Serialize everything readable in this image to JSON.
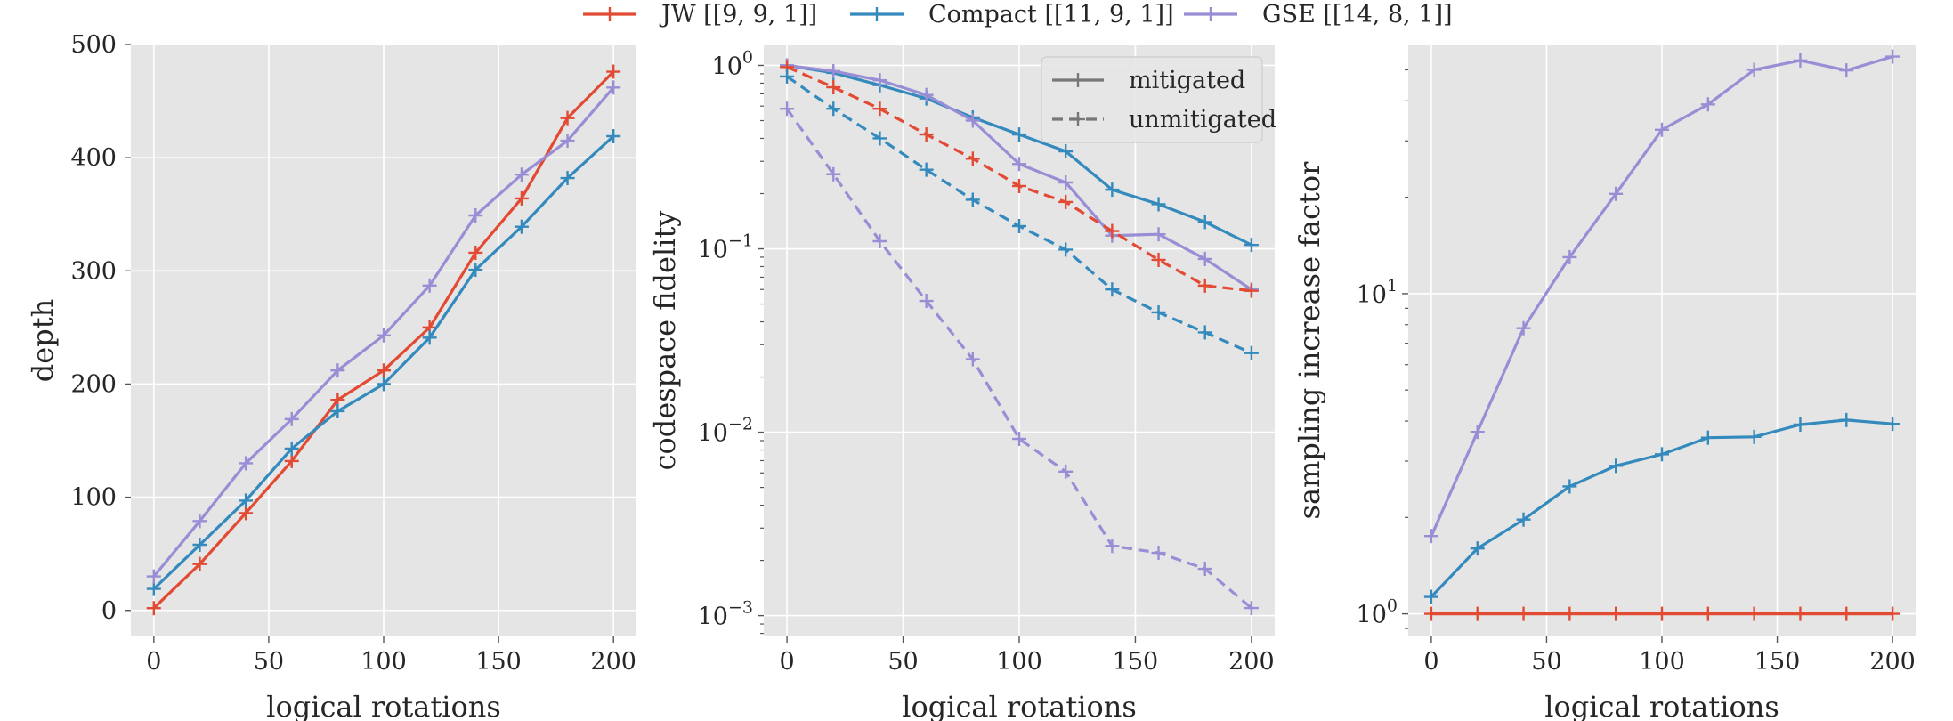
{
  "legend": {
    "series": [
      {
        "label": "JW [[9, 9, 1]]",
        "color": "#e24a33"
      },
      {
        "label": "Compact [[11, 9, 1]]",
        "color": "#348abd"
      },
      {
        "label": "GSE [[14, 8, 1]]",
        "color": "#988ed5"
      }
    ],
    "styles": [
      {
        "label": "mitigated",
        "dash": "solid"
      },
      {
        "label": "unmitigated",
        "dash": "dashed"
      }
    ]
  },
  "style": {
    "panel_background": "#e5e5e5",
    "grid_color": "#ffffff",
    "legend_line_color": "#777777"
  },
  "chart_data": [
    {
      "type": "line",
      "xlabel": "logical rotations",
      "ylabel": "depth",
      "xscale": "linear",
      "yscale": "linear",
      "xlim": [
        -10,
        210
      ],
      "ylim": [
        -23,
        500
      ],
      "xticks": [
        0,
        50,
        100,
        150,
        200
      ],
      "xtick_labels": [
        "0",
        "50",
        "100",
        "150",
        "200"
      ],
      "yticks": [
        0,
        100,
        200,
        300,
        400,
        500
      ],
      "ytick_labels": [
        "0",
        "100",
        "200",
        "300",
        "400",
        "500"
      ],
      "grid": true,
      "x": [
        0,
        20,
        40,
        60,
        80,
        100,
        120,
        140,
        160,
        180,
        200
      ],
      "series": [
        {
          "name": "JW [[9, 9, 1]]",
          "color": "#e24a33",
          "dash": "solid",
          "values": [
            2,
            41,
            86,
            132,
            186,
            212,
            250,
            316,
            364,
            435,
            476
          ]
        },
        {
          "name": "Compact [[11, 9, 1]]",
          "color": "#348abd",
          "dash": "solid",
          "values": [
            19,
            58,
            97,
            143,
            176,
            200,
            241,
            301,
            339,
            382,
            419
          ]
        },
        {
          "name": "GSE [[14, 8, 1]]",
          "color": "#988ed5",
          "dash": "solid",
          "values": [
            30,
            79,
            130,
            169,
            212,
            243,
            287,
            349,
            385,
            415,
            462
          ]
        }
      ]
    },
    {
      "type": "line",
      "xlabel": "logical rotations",
      "ylabel": "codespace fidelity",
      "xscale": "linear",
      "yscale": "log",
      "xlim": [
        -10,
        210
      ],
      "ylim": [
        0.00077,
        1.3
      ],
      "xticks": [
        0,
        50,
        100,
        150,
        200
      ],
      "xtick_labels": [
        "0",
        "50",
        "100",
        "150",
        "200"
      ],
      "yticks": [
        0.001,
        0.01,
        0.1,
        1
      ],
      "ytick_labels": [
        {
          "base": "10",
          "exp": "−3"
        },
        {
          "base": "10",
          "exp": "−2"
        },
        {
          "base": "10",
          "exp": "−1"
        },
        {
          "base": "10",
          "exp": "0"
        }
      ],
      "grid": true,
      "legend_position": "upper right",
      "x": [
        0,
        20,
        40,
        60,
        80,
        100,
        120,
        140,
        160,
        180,
        200
      ],
      "series": [
        {
          "name": "Compact [[11, 9, 1]]",
          "color": "#348abd",
          "dash": "solid",
          "values": [
            1.0,
            0.91,
            0.78,
            0.66,
            0.52,
            0.42,
            0.34,
            0.21,
            0.175,
            0.14,
            0.105
          ]
        },
        {
          "name": "GSE [[14, 8, 1]]",
          "color": "#988ed5",
          "dash": "solid",
          "values": [
            1.0,
            0.93,
            0.83,
            0.69,
            0.5,
            0.29,
            0.23,
            0.118,
            0.12,
            0.088,
            0.06
          ]
        },
        {
          "name": "JW [[9, 9, 1]]",
          "color": "#e24a33",
          "dash": "dashed",
          "values": [
            0.98,
            0.76,
            0.58,
            0.42,
            0.31,
            0.22,
            0.18,
            0.125,
            0.087,
            0.063,
            0.059
          ]
        },
        {
          "name": "Compact [[11, 9, 1]]",
          "color": "#348abd",
          "dash": "dashed",
          "values": [
            0.87,
            0.58,
            0.4,
            0.27,
            0.185,
            0.133,
            0.099,
            0.06,
            0.045,
            0.035,
            0.027
          ]
        },
        {
          "name": "GSE [[14, 8, 1]]",
          "color": "#988ed5",
          "dash": "dashed",
          "values": [
            0.58,
            0.255,
            0.11,
            0.052,
            0.025,
            0.0092,
            0.0061,
            0.0024,
            0.0022,
            0.0018,
            0.0011
          ]
        }
      ]
    },
    {
      "type": "line",
      "xlabel": "logical rotations",
      "ylabel": "sampling increase factor",
      "xscale": "linear",
      "yscale": "log",
      "xlim": [
        -10,
        210
      ],
      "ylim": [
        0.85,
        60
      ],
      "xticks": [
        0,
        50,
        100,
        150,
        200
      ],
      "xtick_labels": [
        "0",
        "50",
        "100",
        "150",
        "200"
      ],
      "yticks": [
        1,
        10
      ],
      "ytick_labels": [
        {
          "base": "10",
          "exp": "0"
        },
        {
          "base": "10",
          "exp": "1"
        }
      ],
      "grid": true,
      "x": [
        0,
        20,
        40,
        60,
        80,
        100,
        120,
        140,
        160,
        180,
        200
      ],
      "series": [
        {
          "name": "JW [[9, 9, 1]]",
          "color": "#e24a33",
          "dash": "solid",
          "values": [
            1,
            1,
            1,
            1,
            1,
            1,
            1,
            1,
            1,
            1,
            1
          ]
        },
        {
          "name": "Compact [[11, 9, 1]]",
          "color": "#348abd",
          "dash": "solid",
          "values": [
            1.13,
            1.6,
            1.97,
            2.5,
            2.9,
            3.15,
            3.55,
            3.57,
            3.9,
            4.03,
            3.92
          ]
        },
        {
          "name": "GSE [[14, 8, 1]]",
          "color": "#988ed5",
          "dash": "solid",
          "values": [
            1.75,
            3.7,
            7.8,
            13.0,
            20.5,
            32.5,
            39.0,
            50.0,
            53.5,
            49.8,
            55.0
          ]
        }
      ]
    }
  ]
}
